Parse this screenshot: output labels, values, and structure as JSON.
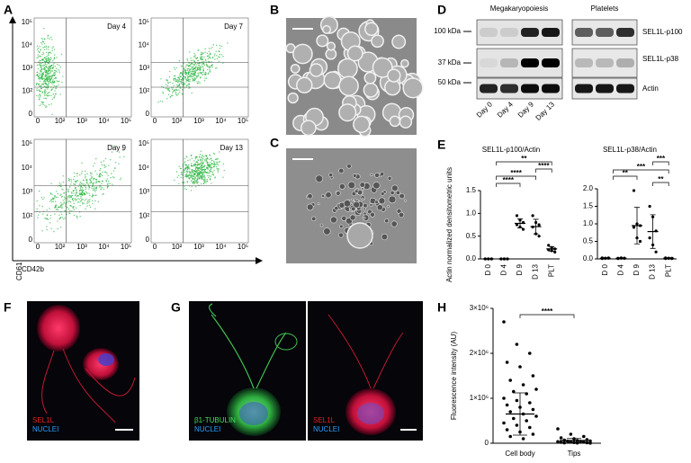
{
  "panels": {
    "letters": [
      "A",
      "B",
      "C",
      "D",
      "E",
      "F",
      "G",
      "H"
    ],
    "A": {
      "days": [
        "Day 4",
        "Day 7",
        "Day 9",
        "Day 13"
      ],
      "ticks": [
        "0",
        "10²",
        "10³",
        "10⁴",
        "10⁵"
      ],
      "ylabel": "CD61",
      "xlabel": "CD42b"
    },
    "D": {
      "groups": [
        "Megakaryopoiesis",
        "Platelets"
      ],
      "bands": [
        "SEL1L-p100",
        "SEL1L-p38",
        "Actin"
      ],
      "markers": [
        "100 kDa",
        "37 kDa",
        "50 kDa"
      ],
      "lanes": [
        "Day 0",
        "Day 4",
        "Day 9",
        "Day 13"
      ]
    },
    "F": {
      "stains": [
        "SEL1L",
        "NUCLEI"
      ]
    },
    "G": {
      "left_stains": [
        "β1-TUBULIN",
        "NUCLEI"
      ],
      "right_stains": [
        "SEL1L",
        "NUCLEI"
      ]
    }
  },
  "chart_data": [
    {
      "type": "dotplot",
      "title": "SEL1L-p100/Actin",
      "ylabel": "Actin normalized densitometric units",
      "categories": [
        "D 0",
        "D 4",
        "D 9",
        "D 13",
        "PLT"
      ],
      "values": [
        0,
        0,
        0.78,
        0.71,
        0.22
      ],
      "errors": [
        0,
        0,
        0.1,
        0.16,
        0.05
      ],
      "points": [
        [
          0,
          0,
          0,
          0,
          0,
          0
        ],
        [
          0,
          0,
          0,
          0,
          0,
          0
        ],
        [
          0.95,
          0.85,
          0.8,
          0.75,
          0.7,
          0.65
        ],
        [
          0.95,
          0.8,
          0.75,
          0.7,
          0.55,
          0.5
        ],
        [
          0.3,
          0.25,
          0.22,
          0.2,
          0.18,
          0.15
        ]
      ],
      "ylim": [
        0,
        1.5
      ],
      "yticks": [
        {
          "value": 0,
          "label": "0.0"
        },
        {
          "value": 0.5,
          "label": "0.5"
        },
        {
          "value": 1,
          "label": "1.0"
        },
        {
          "value": 1.5,
          "label": "1.5"
        }
      ],
      "annotations": [
        "**",
        "****",
        "****",
        "****"
      ],
      "color": "#000000"
    },
    {
      "type": "dotplot",
      "title": "SEL1L-p38/Actin",
      "categories": [
        "D 0",
        "D 4",
        "D 9",
        "D 13",
        "PLT"
      ],
      "values": [
        0.02,
        0.02,
        0.95,
        0.78,
        0.02
      ],
      "errors": [
        0.01,
        0.01,
        0.52,
        0.48,
        0.01
      ],
      "points": [
        [
          0.03,
          0.02,
          0.02,
          0.01,
          0.02,
          0.03
        ],
        [
          0.02,
          0.03,
          0.02,
          0.01,
          0.02,
          0.02
        ],
        [
          1.95,
          1.0,
          0.95,
          0.9,
          0.6,
          0.5
        ],
        [
          1.5,
          1.2,
          0.8,
          0.6,
          0.4,
          0.2
        ],
        [
          0.03,
          0.02,
          0.02,
          0.01,
          0.02,
          0.01
        ]
      ],
      "ylim": [
        0,
        2
      ],
      "yticks": [
        {
          "value": 0,
          "label": "0.0"
        },
        {
          "value": 0.5,
          "label": "0.5"
        },
        {
          "value": 1,
          "label": "1.0"
        },
        {
          "value": 1.5,
          "label": "1.5"
        },
        {
          "value": 2,
          "label": "2.0"
        }
      ],
      "annotations": [
        "**",
        "***",
        "***",
        "**"
      ],
      "color": "#000000"
    },
    {
      "type": "dotplot",
      "ylabel": "Fluorescence intensity (AU)",
      "categories": [
        "Cell body",
        "Tips"
      ],
      "values": [
        650000,
        60000
      ],
      "errors": [
        470000,
        45000
      ],
      "points": [
        [
          2700000,
          2200000,
          2000000,
          1800000,
          1700000,
          1500000,
          1400000,
          1300000,
          1200000,
          1150000,
          1100000,
          1000000,
          950000,
          900000,
          850000,
          800000,
          750000,
          700000,
          650000,
          600000,
          550000,
          500000,
          450000,
          400000,
          350000,
          300000,
          250000,
          200000,
          150000,
          100000
        ],
        [
          320000,
          200000,
          150000,
          120000,
          100000,
          80000,
          70000,
          60000,
          50000,
          45000,
          40000,
          35000,
          30000,
          25000,
          20000,
          15000,
          10000,
          8000,
          5000,
          3000
        ]
      ],
      "ylim": [
        0,
        3000000
      ],
      "yticks": [
        0,
        {
          "value": 1000000,
          "label": "1×10⁶"
        },
        {
          "value": 2000000,
          "label": "2×10⁶"
        },
        {
          "value": 3000000,
          "label": "3×10⁶"
        }
      ],
      "annotations": [
        "****"
      ],
      "color": "#000000"
    }
  ]
}
